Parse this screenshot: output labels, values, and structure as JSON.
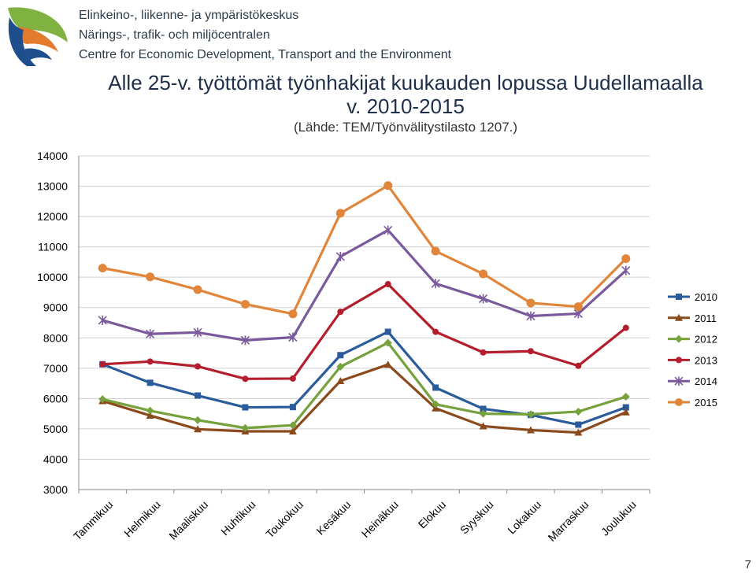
{
  "header": {
    "org_fi": "Elinkeino-, liikenne- ja ympäristökeskus",
    "org_sv": "Närings-, trafik- och miljöcentralen",
    "org_en": "Centre for Economic Development, Transport and the Environment"
  },
  "page_number": "7",
  "chart_data": {
    "type": "line",
    "title": "Alle 25-v. työttömät työnhakijat kuukauden lopussa Uudellamaalla",
    "subtitle": "v. 2010-2015",
    "source": "(Lähde: TEM/Työnvälitystilasto 1207.)",
    "xlabel": "",
    "ylabel": "",
    "ylim": [
      3000,
      14000
    ],
    "yticks": [
      3000,
      4000,
      5000,
      6000,
      7000,
      8000,
      9000,
      10000,
      11000,
      12000,
      13000,
      14000
    ],
    "grid": true,
    "legend_position": "right",
    "categories": [
      "Tammikuu",
      "Helmikuu",
      "Maaliskuu",
      "Huhtikuu",
      "Toukokuu",
      "Kesäkuu",
      "Heinäkuu",
      "Elokuu",
      "Syyskuu",
      "Lokakuu",
      "Marraskuu",
      "Joulukuu"
    ],
    "series": [
      {
        "name": "2010",
        "color": "#2a5b9a",
        "marker": "square",
        "values": [
          7130,
          6520,
          6100,
          5710,
          5720,
          7430,
          8200,
          6360,
          5660,
          5460,
          5140,
          5710
        ]
      },
      {
        "name": "2011",
        "color": "#8a4a1c",
        "marker": "triangle",
        "values": [
          5920,
          5440,
          4990,
          4920,
          4920,
          6580,
          7120,
          5680,
          5090,
          4960,
          4880,
          5550
        ]
      },
      {
        "name": "2012",
        "color": "#76a13c",
        "marker": "diamond",
        "values": [
          5980,
          5600,
          5290,
          5030,
          5120,
          7050,
          7840,
          5810,
          5500,
          5480,
          5570,
          6060
        ]
      },
      {
        "name": "2013",
        "color": "#b41e2c",
        "marker": "circle",
        "values": [
          7130,
          7220,
          7060,
          6650,
          6660,
          8860,
          9770,
          8200,
          7520,
          7560,
          7080,
          8330
        ]
      },
      {
        "name": "2014",
        "color": "#7a5a9c",
        "marker": "star",
        "values": [
          8580,
          8130,
          8180,
          7920,
          8020,
          10680,
          11550,
          9790,
          9290,
          8720,
          8800,
          10220
        ]
      },
      {
        "name": "2015",
        "color": "#e0853a",
        "marker": "circle",
        "values": [
          10300,
          10010,
          9590,
          9110,
          8790,
          12110,
          13020,
          10860,
          10110,
          9150,
          9030,
          10610
        ]
      }
    ]
  }
}
